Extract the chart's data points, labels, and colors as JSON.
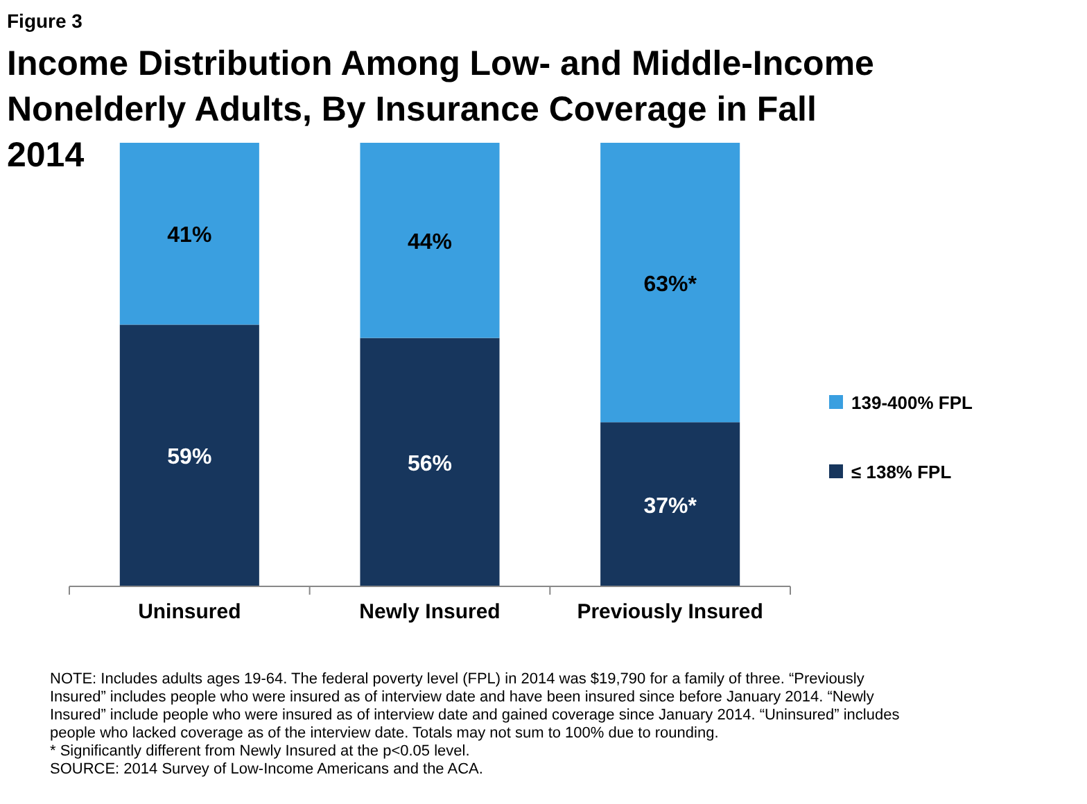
{
  "chart_data": {
    "type": "bar",
    "stacked": true,
    "subtitle": "Figure 3",
    "title": "Income Distribution Among Low- and Middle-Income Nonelderly Adults, By Insurance Coverage in Fall 2014",
    "categories": [
      "Uninsured",
      "Newly Insured",
      "Previously Insured"
    ],
    "series": [
      {
        "name": "≤ 138% FPL",
        "color": "#17365d",
        "values": [
          59,
          56,
          37
        ],
        "value_labels": [
          "59%",
          "56%",
          "37%*"
        ]
      },
      {
        "name": "139-400% FPL",
        "color": "#3a9fe0",
        "values": [
          41,
          44,
          63
        ],
        "value_labels": [
          "41%",
          "44%",
          "63%*"
        ]
      }
    ],
    "legend": "right",
    "annotations": [
      "NOTE: Includes adults ages 19-64. The federal poverty level (FPL) in 2014 was $19,790 for a family of three. “Previously Insured” includes people who were insured as of interview date and have been insured since before January 2014. “Newly Insured” include people who were insured as of interview date and gained coverage since January 2014. “Uninsured” includes people who lacked coverage as of the interview date. Totals may not sum to 100% due to rounding.",
      "* Significantly different from Newly Insured at the p<0.05 level.",
      "SOURCE: 2014 Survey of Low-Income Americans and the ACA."
    ]
  }
}
